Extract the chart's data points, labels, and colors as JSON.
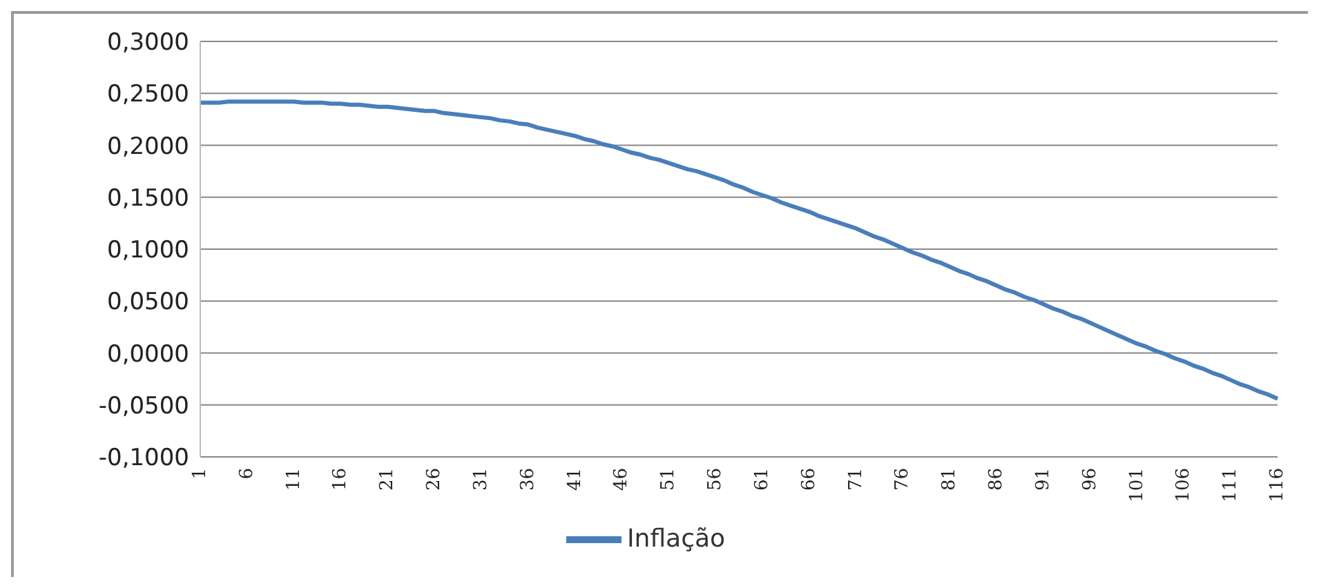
{
  "chart_data": {
    "type": "line",
    "categories": [
      "1",
      null,
      null,
      null,
      null,
      "6",
      null,
      null,
      null,
      null,
      "11",
      null,
      null,
      null,
      null,
      "16",
      null,
      null,
      null,
      null,
      "21",
      null,
      null,
      null,
      null,
      "26",
      null,
      null,
      null,
      null,
      "31",
      null,
      null,
      null,
      null,
      "36",
      null,
      null,
      null,
      null,
      "41",
      null,
      null,
      null,
      null,
      "46",
      null,
      null,
      null,
      null,
      "51",
      null,
      null,
      null,
      null,
      "56",
      null,
      null,
      null,
      null,
      "61",
      null,
      null,
      null,
      null,
      "66",
      null,
      null,
      null,
      null,
      "71",
      null,
      null,
      null,
      null,
      "76",
      null,
      null,
      null,
      null,
      "81",
      null,
      null,
      null,
      null,
      "86",
      null,
      null,
      null,
      null,
      "91",
      null,
      null,
      null,
      null,
      "96",
      null,
      null,
      null,
      null,
      "101",
      null,
      null,
      null,
      null,
      "106",
      null,
      null,
      null,
      null,
      "111",
      null,
      null,
      null,
      null,
      "116"
    ],
    "series": [
      {
        "name": "Inflação",
        "color": "#4a7ebb",
        "values": [
          0.241,
          0.241,
          0.241,
          0.242,
          0.242,
          0.242,
          0.242,
          0.242,
          0.242,
          0.242,
          0.242,
          0.241,
          0.241,
          0.241,
          0.24,
          0.24,
          0.239,
          0.239,
          0.238,
          0.237,
          0.237,
          0.236,
          0.235,
          0.234,
          0.233,
          0.233,
          0.231,
          0.23,
          0.229,
          0.228,
          0.227,
          0.226,
          0.224,
          0.223,
          0.221,
          0.22,
          0.217,
          0.215,
          0.213,
          0.211,
          0.209,
          0.206,
          0.204,
          0.201,
          0.199,
          0.196,
          0.193,
          0.191,
          0.188,
          0.186,
          0.183,
          0.18,
          0.177,
          0.175,
          0.172,
          0.169,
          0.166,
          0.162,
          0.159,
          0.155,
          0.152,
          0.149,
          0.145,
          0.142,
          0.139,
          0.136,
          0.132,
          0.129,
          0.126,
          0.123,
          0.12,
          0.116,
          0.112,
          0.109,
          0.105,
          0.101,
          0.097,
          0.094,
          0.09,
          0.087,
          0.083,
          0.079,
          0.076,
          0.072,
          0.069,
          0.065,
          0.061,
          0.058,
          0.054,
          0.051,
          0.047,
          0.043,
          0.04,
          0.036,
          0.033,
          0.029,
          0.025,
          0.021,
          0.017,
          0.013,
          0.009,
          0.006,
          0.002,
          -0.001,
          -0.005,
          -0.008,
          -0.012,
          -0.015,
          -0.019,
          -0.022,
          -0.026,
          -0.03,
          -0.033,
          -0.037,
          -0.04,
          -0.044
        ]
      }
    ],
    "ylim": [
      -0.1,
      0.3
    ],
    "yticks": [
      {
        "value": -0.1,
        "label": "-0,1000"
      },
      {
        "value": -0.05,
        "label": "-0,0500"
      },
      {
        "value": 0,
        "label": "0,0000"
      },
      {
        "value": 0.05,
        "label": "0,0500"
      },
      {
        "value": 0.1,
        "label": "0,1000"
      },
      {
        "value": 0.15,
        "label": "0,1500"
      },
      {
        "value": 0.2,
        "label": "0,2000"
      },
      {
        "value": 0.25,
        "label": "0,2500"
      },
      {
        "value": 0.3,
        "label": "0,3000"
      }
    ],
    "grid": "y",
    "legend": "bottom",
    "marker": "none",
    "line_style": "solid"
  }
}
